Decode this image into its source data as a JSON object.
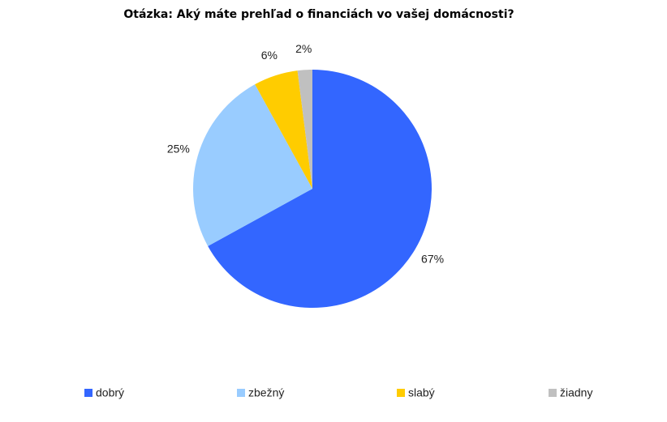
{
  "chart_data": {
    "type": "pie",
    "title": "Otázka: Aký máte prehľad o financiách vo vašej domácnosti?",
    "categories": [
      "dobrý",
      "zbežný",
      "slabý",
      "žiadny"
    ],
    "values": [
      67,
      25,
      6,
      2
    ],
    "value_labels": [
      "67%",
      "25%",
      "6%",
      "2%"
    ],
    "colors": [
      "#3366ff",
      "#99ccff",
      "#ffcc00",
      "#c0c0c0"
    ],
    "legend": "bottom"
  }
}
